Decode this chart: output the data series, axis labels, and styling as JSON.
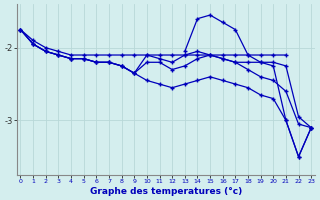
{
  "xlabel": "Graphe des temperatures (°c)",
  "background_color": "#d4eeee",
  "grid_color": "#b8d8d8",
  "line_color": "#0000bb",
  "hours": [
    0,
    1,
    2,
    3,
    4,
    5,
    6,
    7,
    8,
    9,
    10,
    11,
    12,
    13,
    14,
    15,
    16,
    17,
    18,
    19,
    20,
    21,
    22,
    23
  ],
  "series": {
    "line1": [
      -1.75,
      -1.9,
      -2.0,
      -2.05,
      -2.1,
      -2.1,
      -2.1,
      -2.1,
      -2.1,
      -2.1,
      -2.1,
      -2.1,
      -2.1,
      -2.1,
      -2.1,
      -2.1,
      -2.1,
      -2.1,
      -2.1,
      -2.1,
      -2.1,
      -2.1,
      null,
      null
    ],
    "line2": [
      -1.75,
      -1.95,
      -2.05,
      -2.1,
      -2.15,
      -2.15,
      -2.2,
      -2.2,
      -2.25,
      -2.35,
      -2.1,
      -2.15,
      -2.2,
      -2.1,
      -2.05,
      -2.1,
      -2.15,
      -2.2,
      -2.2,
      -2.2,
      -2.2,
      -2.25,
      -2.95,
      -3.1
    ],
    "line3": [
      -1.75,
      -1.95,
      -2.05,
      -2.1,
      -2.15,
      -2.15,
      -2.2,
      -2.2,
      -2.25,
      -2.35,
      -2.2,
      -2.2,
      -2.3,
      -2.25,
      -2.15,
      -2.1,
      -2.15,
      -2.2,
      -2.3,
      -2.4,
      -2.45,
      -2.6,
      -3.05,
      -3.1
    ],
    "line4": [
      -1.75,
      -1.95,
      -2.05,
      -2.1,
      -2.15,
      -2.15,
      -2.2,
      -2.2,
      -2.25,
      -2.35,
      -2.45,
      -2.5,
      -2.55,
      -2.5,
      -2.45,
      -2.4,
      -2.45,
      -2.5,
      -2.55,
      -2.65,
      -2.7,
      -3.0,
      -3.5,
      -3.1
    ],
    "line5": [
      null,
      null,
      null,
      null,
      null,
      null,
      null,
      null,
      null,
      null,
      null,
      null,
      null,
      -2.05,
      -1.6,
      -1.55,
      -1.65,
      -1.75,
      -2.1,
      -2.2,
      -2.25,
      -3.0,
      -3.5,
      -3.1
    ]
  },
  "yticks": [
    -2,
    -3
  ],
  "ylim": [
    -3.75,
    -1.4
  ],
  "xlim": [
    -0.3,
    23.3
  ]
}
